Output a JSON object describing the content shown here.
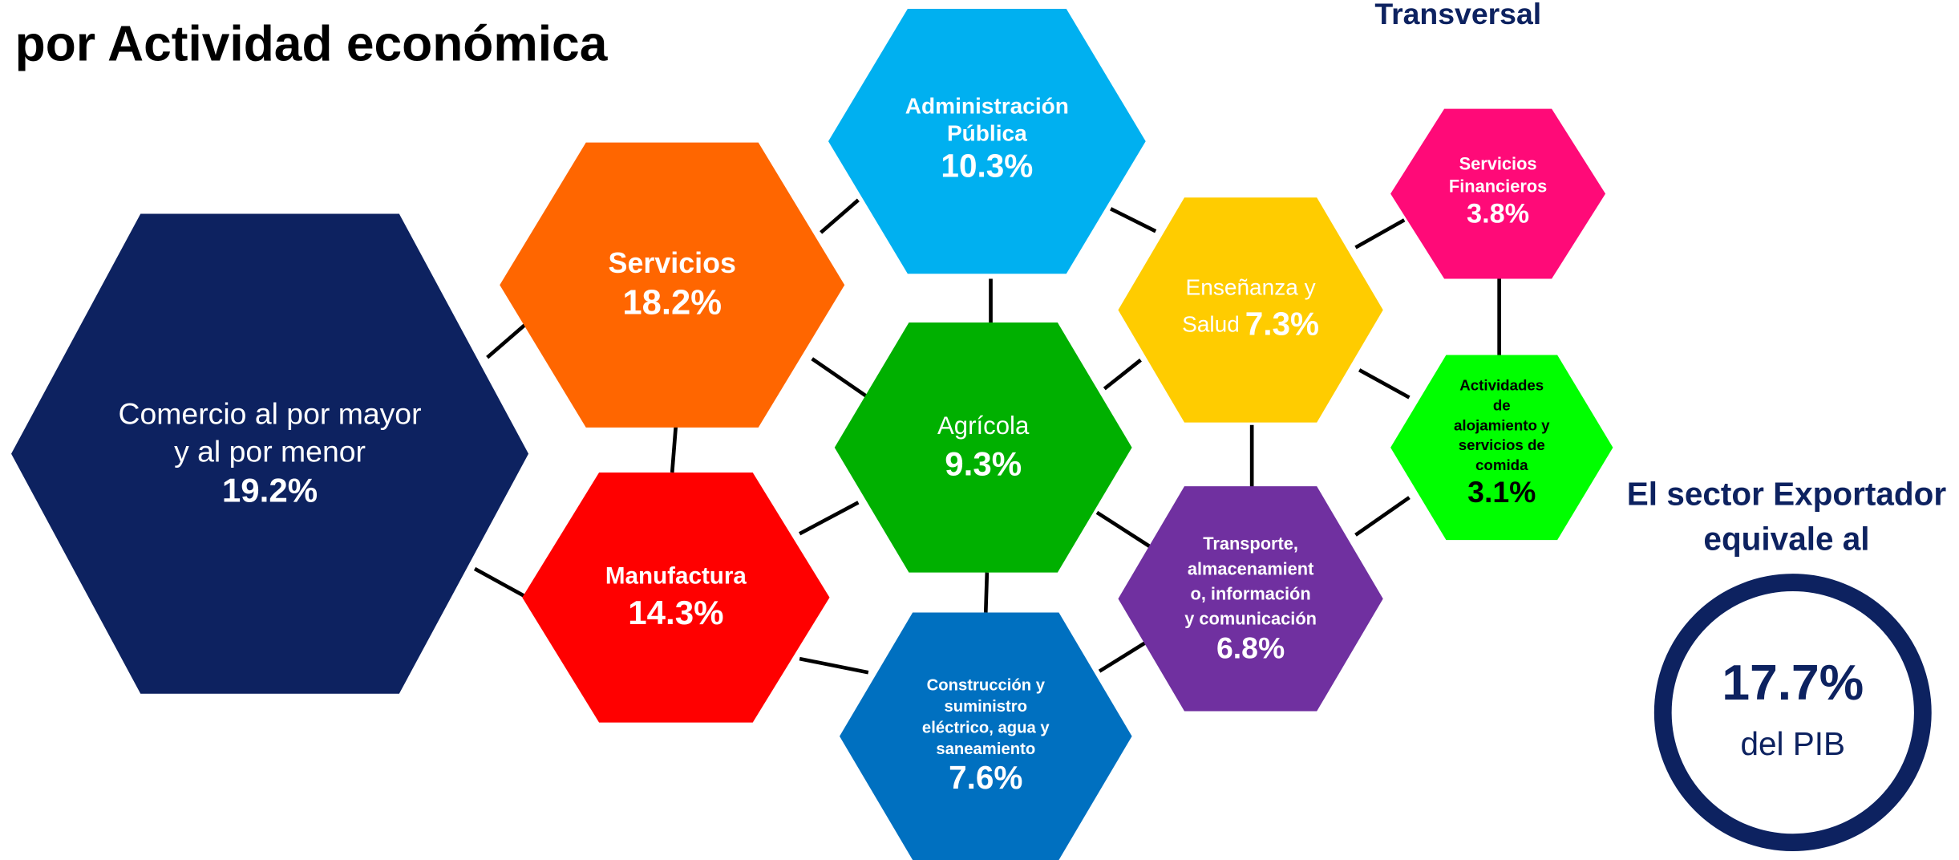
{
  "header": {
    "title": "por Actividad económica",
    "top_right": "Transversal"
  },
  "nodes": [
    {
      "label": [
        "Comercio al por mayor",
        "y al por menor"
      ],
      "value": "19.2%"
    },
    {
      "label": [
        "Servicios"
      ],
      "value": "18.2%"
    },
    {
      "label": [
        "Manufactura"
      ],
      "value": "14.3%"
    },
    {
      "label": [
        "Administración",
        "Pública"
      ],
      "value": "10.3%"
    },
    {
      "label": [
        "Agrícola"
      ],
      "value": "9.3%"
    },
    {
      "label": [
        "Construcción  y",
        "suministro",
        "eléctrico, agua y",
        "saneamiento"
      ],
      "value": "7.6%"
    },
    {
      "label": [
        "Enseñanza y",
        "Salud"
      ],
      "value": "7.3%"
    },
    {
      "label": [
        "Transporte,",
        "almacenamient",
        "o, información",
        "y comunicación"
      ],
      "value": "6.8%"
    },
    {
      "label": [
        "Servicios",
        "Financieros"
      ],
      "value": "3.8%"
    },
    {
      "label": [
        "Actividades",
        "de",
        "alojamiento y",
        "servicios de",
        "comida"
      ],
      "value": "3.1%"
    }
  ],
  "summary": {
    "heading": [
      "El sector Exportador",
      "equivale al"
    ],
    "value": "17.7%",
    "unit": "del PIB"
  }
}
